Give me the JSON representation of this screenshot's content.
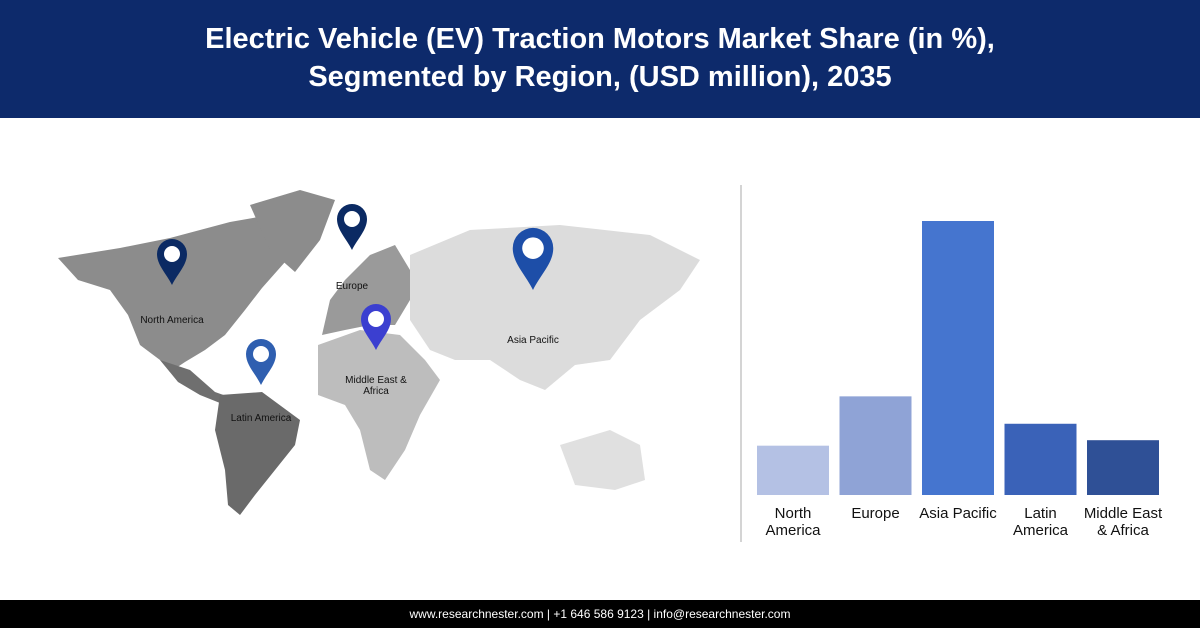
{
  "header": {
    "title": [
      "Electric Vehicle (EV) Traction Motors Market Share (in %),",
      "Segmented by Region, (USD million), 2035"
    ]
  },
  "map": {
    "pins": [
      {
        "label": "North America",
        "color": "#0b2a63"
      },
      {
        "label": "Europe",
        "color": "#0b2a63"
      },
      {
        "label": "Asia Pacific",
        "color": "#1d4ea8"
      },
      {
        "label": "Latin America",
        "color": "#2f5fb0"
      },
      {
        "label": "Middle East & Africa",
        "color": "#3b3fd0"
      }
    ]
  },
  "chart_data": {
    "type": "bar",
    "categories": [
      "North America",
      "Europe",
      "Asia Pacific",
      "Latin America",
      "Middle East & Africa"
    ],
    "values": [
      9,
      18,
      50,
      13,
      10
    ],
    "colors": [
      "#b4c1e4",
      "#8fa3d6",
      "#4575cf",
      "#3a62b8",
      "#2f5096"
    ]
  },
  "footer": {
    "text": "www.researchnester.com | +1 646 586 9123 | info@researchnester.com"
  }
}
